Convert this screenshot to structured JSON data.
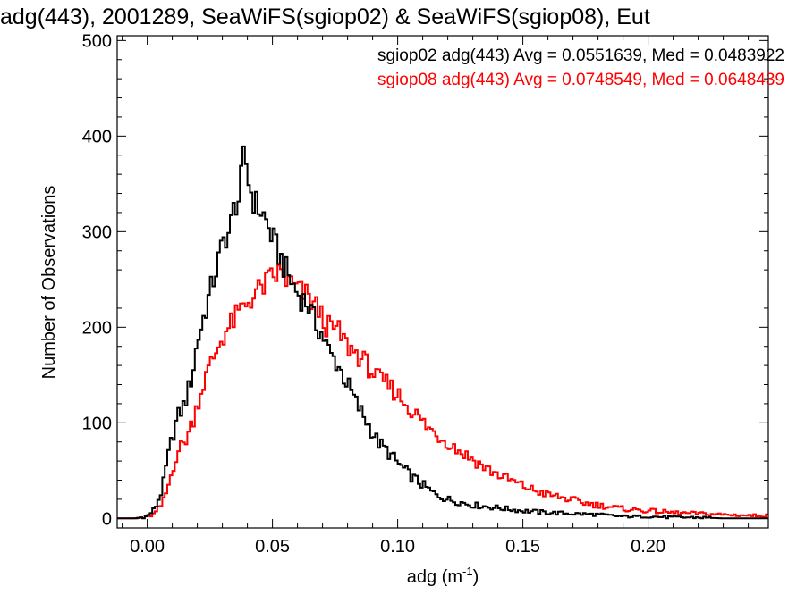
{
  "chart_data": {
    "type": "line",
    "title": "adg(443), 2001289, SeaWiFS(sgiop02) & SeaWiFS(sgiop08), Eut",
    "xlabel_base": "adg (m",
    "xlabel_sup": "-1",
    "xlabel_close": ")",
    "ylabel": "Number of Observations",
    "xlim": [
      -0.012,
      0.248
    ],
    "ylim": [
      -10,
      505
    ],
    "x_ticks": [
      0.0,
      0.05,
      0.1,
      0.15,
      0.2
    ],
    "x_tick_labels": [
      "0.00",
      "0.05",
      "0.10",
      "0.15",
      "0.20"
    ],
    "y_ticks": [
      0,
      100,
      200,
      300,
      400,
      500
    ],
    "y_tick_labels": [
      "0",
      "100",
      "200",
      "300",
      "400",
      "500"
    ],
    "legend_position": "top-right",
    "bin_width": 0.001,
    "series": [
      {
        "name": "sgiop02",
        "legend": "sgiop02 adg(443) Avg = 0.0551639, Med = 0.0483922",
        "color": "#000000",
        "points": [
          [
            -0.005,
            0
          ],
          [
            0.0,
            2
          ],
          [
            0.003,
            10
          ],
          [
            0.006,
            30
          ],
          [
            0.008,
            60
          ],
          [
            0.01,
            85
          ],
          [
            0.012,
            105
          ],
          [
            0.015,
            120
          ],
          [
            0.018,
            150
          ],
          [
            0.02,
            185
          ],
          [
            0.023,
            215
          ],
          [
            0.026,
            245
          ],
          [
            0.029,
            275
          ],
          [
            0.031,
            295
          ],
          [
            0.033,
            300
          ],
          [
            0.035,
            330
          ],
          [
            0.037,
            335
          ],
          [
            0.038,
            370
          ],
          [
            0.039,
            380
          ],
          [
            0.041,
            345
          ],
          [
            0.043,
            330
          ],
          [
            0.046,
            320
          ],
          [
            0.049,
            300
          ],
          [
            0.052,
            280
          ],
          [
            0.055,
            262
          ],
          [
            0.058,
            245
          ],
          [
            0.061,
            232
          ],
          [
            0.064,
            225
          ],
          [
            0.067,
            205
          ],
          [
            0.07,
            192
          ],
          [
            0.073,
            172
          ],
          [
            0.076,
            162
          ],
          [
            0.08,
            140
          ],
          [
            0.084,
            118
          ],
          [
            0.088,
            100
          ],
          [
            0.092,
            80
          ],
          [
            0.096,
            70
          ],
          [
            0.1,
            58
          ],
          [
            0.105,
            45
          ],
          [
            0.11,
            35
          ],
          [
            0.115,
            25
          ],
          [
            0.12,
            20
          ],
          [
            0.13,
            14
          ],
          [
            0.14,
            11
          ],
          [
            0.15,
            8
          ],
          [
            0.16,
            6
          ],
          [
            0.17,
            5
          ],
          [
            0.18,
            4
          ],
          [
            0.19,
            2
          ],
          [
            0.2,
            2
          ],
          [
            0.21,
            1
          ],
          [
            0.22,
            1
          ],
          [
            0.23,
            0
          ],
          [
            0.247,
            0
          ]
        ]
      },
      {
        "name": "sgiop08",
        "legend": "sgiop08 adg(443) Avg = 0.0748549, Med = 0.0648439",
        "color": "#ff0000",
        "points": [
          [
            -0.005,
            0
          ],
          [
            0.0,
            1
          ],
          [
            0.003,
            5
          ],
          [
            0.006,
            15
          ],
          [
            0.008,
            30
          ],
          [
            0.01,
            50
          ],
          [
            0.012,
            70
          ],
          [
            0.015,
            80
          ],
          [
            0.018,
            100
          ],
          [
            0.02,
            120
          ],
          [
            0.023,
            145
          ],
          [
            0.026,
            165
          ],
          [
            0.03,
            190
          ],
          [
            0.034,
            205
          ],
          [
            0.038,
            220
          ],
          [
            0.042,
            232
          ],
          [
            0.046,
            242
          ],
          [
            0.05,
            252
          ],
          [
            0.053,
            257
          ],
          [
            0.056,
            248
          ],
          [
            0.06,
            240
          ],
          [
            0.064,
            232
          ],
          [
            0.068,
            220
          ],
          [
            0.072,
            200
          ],
          [
            0.076,
            197
          ],
          [
            0.08,
            180
          ],
          [
            0.084,
            172
          ],
          [
            0.088,
            160
          ],
          [
            0.092,
            146
          ],
          [
            0.096,
            140
          ],
          [
            0.1,
            130
          ],
          [
            0.104,
            118
          ],
          [
            0.108,
            107
          ],
          [
            0.112,
            95
          ],
          [
            0.116,
            87
          ],
          [
            0.12,
            80
          ],
          [
            0.125,
            70
          ],
          [
            0.13,
            62
          ],
          [
            0.135,
            53
          ],
          [
            0.14,
            46
          ],
          [
            0.145,
            40
          ],
          [
            0.15,
            34
          ],
          [
            0.155,
            29
          ],
          [
            0.16,
            25
          ],
          [
            0.165,
            22
          ],
          [
            0.17,
            19
          ],
          [
            0.175,
            16
          ],
          [
            0.18,
            14
          ],
          [
            0.185,
            12
          ],
          [
            0.19,
            10
          ],
          [
            0.2,
            8
          ],
          [
            0.21,
            6
          ],
          [
            0.22,
            5
          ],
          [
            0.23,
            4
          ],
          [
            0.24,
            3
          ],
          [
            0.247,
            3
          ]
        ]
      }
    ]
  }
}
